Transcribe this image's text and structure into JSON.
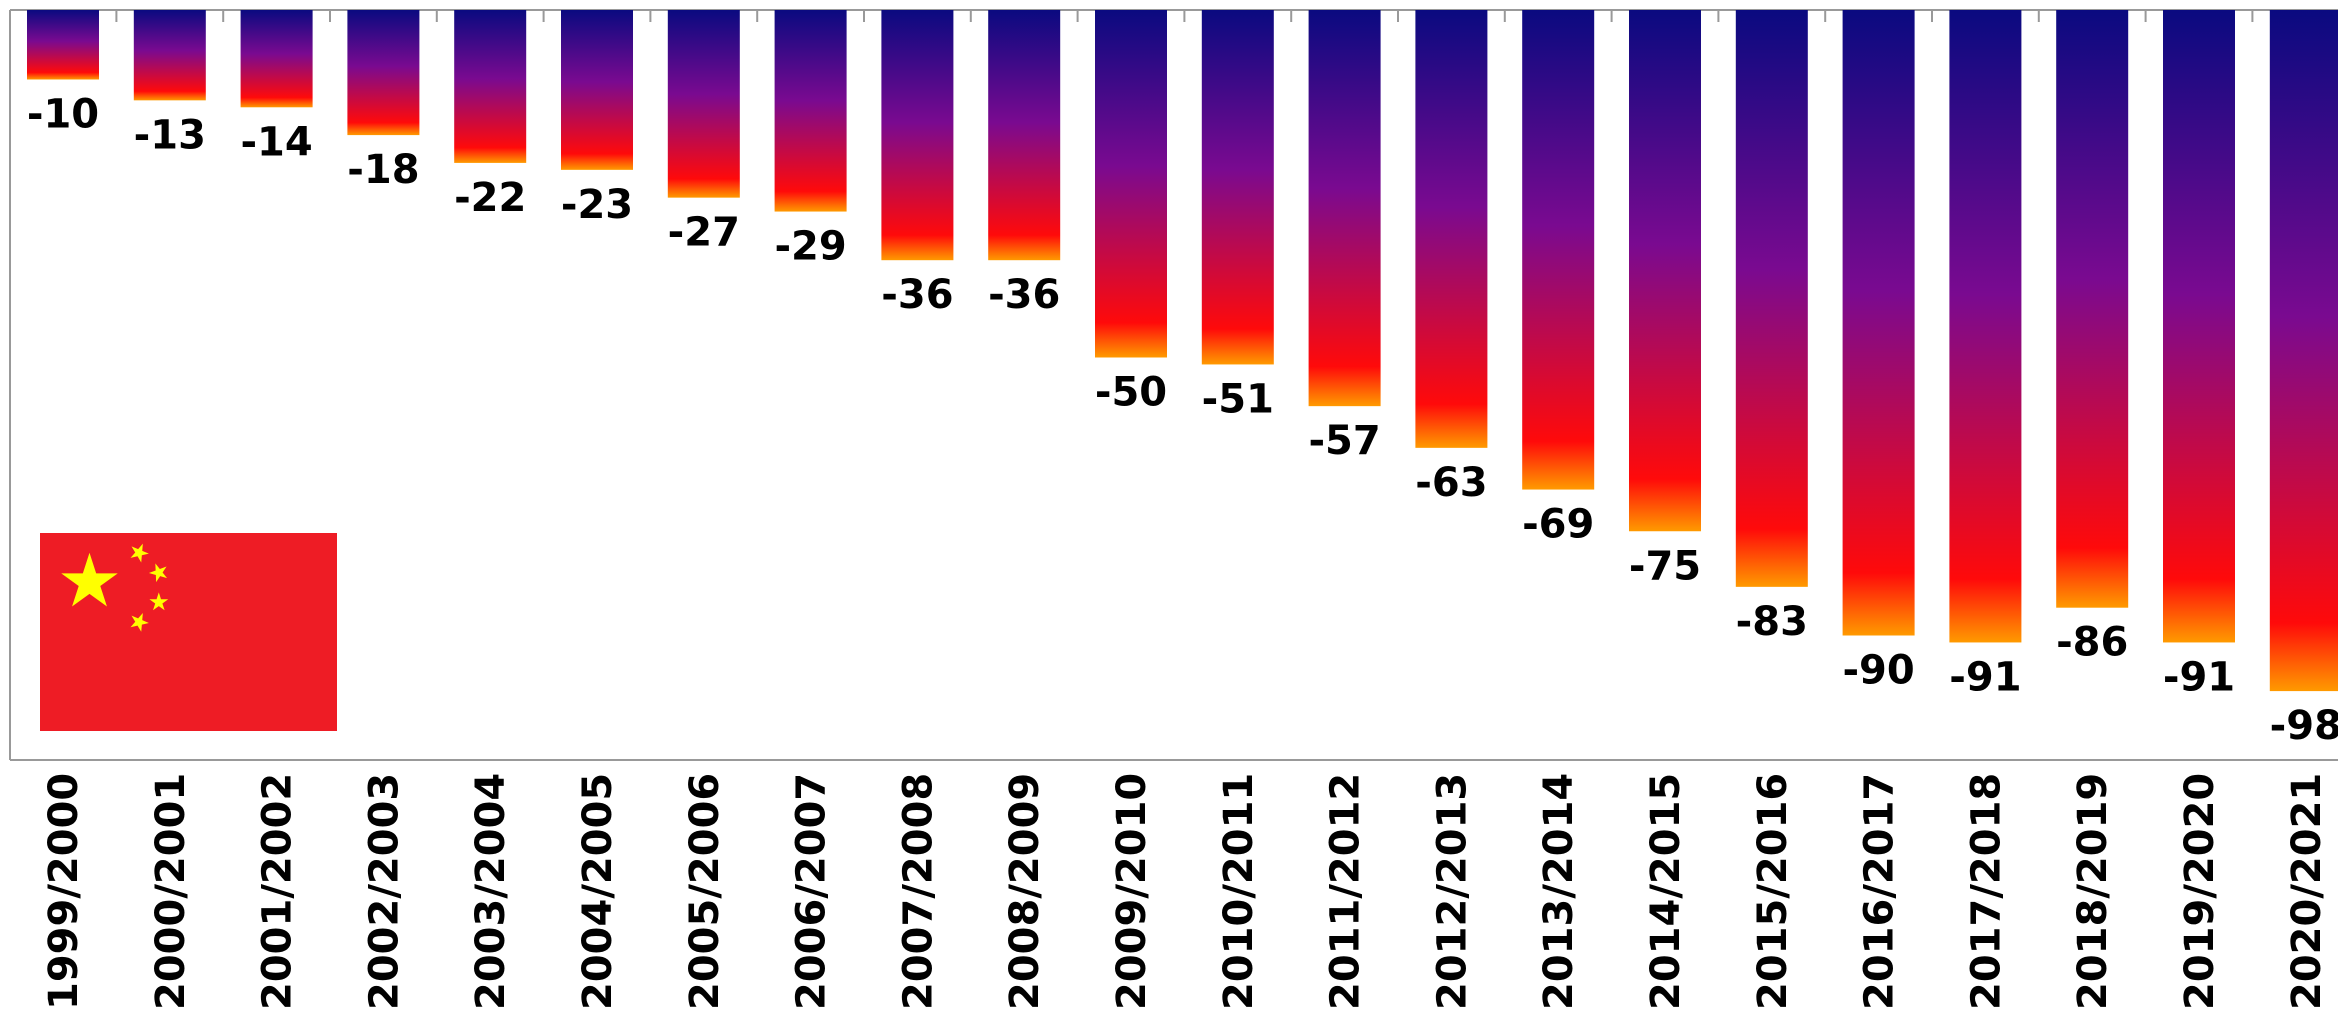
{
  "chart_data": {
    "type": "bar",
    "orientation": "vertical",
    "categories": [
      "1999/2000",
      "2000/2001",
      "2001/2002",
      "2002/2003",
      "2003/2004",
      "2004/2005",
      "2005/2006",
      "2006/2007",
      "2007/2008",
      "2008/2009",
      "2009/2010",
      "2010/2011",
      "2011/2012",
      "2012/2013",
      "2013/2014",
      "2014/2015",
      "2015/2016",
      "2016/2017",
      "2017/2018",
      "2018/2019",
      "2019/2020",
      "2020/2021"
    ],
    "values": [
      -10,
      -13,
      -14,
      -18,
      -22,
      -23,
      -27,
      -29,
      -36,
      -36,
      -50,
      -51,
      -57,
      -63,
      -69,
      -75,
      -83,
      -90,
      -91,
      -86,
      -91,
      -98
    ],
    "value_labels": [
      "-10",
      "-13",
      "-14",
      "-18",
      "-22",
      "-23",
      "-27",
      "-29",
      "-36",
      "-36",
      "-50",
      "-51",
      "-57",
      "-63",
      "-69",
      "-75",
      "-83",
      "-90",
      "-91",
      "-86",
      "-91",
      "-98"
    ],
    "ylim": [
      -120,
      0
    ],
    "grid": false,
    "colors": {
      "bar_top": "#0a0a80",
      "bar_mid": "#7a0a90",
      "bar_low": "#ff0a0a",
      "bar_edge": "#ff9a00",
      "axis": "#999999",
      "flag_red": "#ee1c25",
      "flag_star": "#ffff00"
    },
    "legend": {
      "icon": "china-flag-icon",
      "placement": "bottom-left"
    }
  }
}
